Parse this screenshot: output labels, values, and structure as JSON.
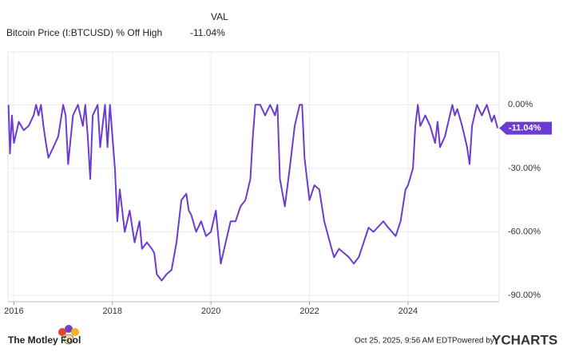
{
  "chart_data": {
    "type": "line",
    "legend_header": "VAL",
    "current": {
      "value": -11.04,
      "label": "-11.04%"
    },
    "x": [
      2015.89,
      2015.92,
      2015.96,
      2016.0,
      2016.1,
      2016.2,
      2016.3,
      2016.4,
      2016.45,
      2016.5,
      2016.55,
      2016.6,
      2016.65,
      2016.7,
      2016.8,
      2016.9,
      2017.0,
      2017.05,
      2017.1,
      2017.2,
      2017.3,
      2017.4,
      2017.45,
      2017.5,
      2017.55,
      2017.6,
      2017.7,
      2017.75,
      2017.8,
      2017.85,
      2017.9,
      2017.95,
      2018.0,
      2018.05,
      2018.1,
      2018.15,
      2018.25,
      2018.35,
      2018.45,
      2018.55,
      2018.6,
      2018.7,
      2018.8,
      2018.85,
      2018.9,
      2019.0,
      2019.1,
      2019.2,
      2019.3,
      2019.4,
      2019.5,
      2019.55,
      2019.6,
      2019.7,
      2019.8,
      2019.9,
      2020.0,
      2020.1,
      2020.2,
      2020.3,
      2020.4,
      2020.5,
      2020.6,
      2020.7,
      2020.8,
      2020.85,
      2020.9,
      2020.95,
      2021.0,
      2021.1,
      2021.2,
      2021.3,
      2021.35,
      2021.4,
      2021.5,
      2021.6,
      2021.7,
      2021.75,
      2021.8,
      2021.85,
      2021.9,
      2022.0,
      2022.1,
      2022.2,
      2022.3,
      2022.45,
      2022.5,
      2022.6,
      2022.7,
      2022.8,
      2022.9,
      2023.0,
      2023.1,
      2023.2,
      2023.3,
      2023.5,
      2023.6,
      2023.75,
      2023.85,
      2023.95,
      2024.0,
      2024.1,
      2024.15,
      2024.2,
      2024.25,
      2024.35,
      2024.45,
      2024.55,
      2024.6,
      2024.65,
      2024.75,
      2024.85,
      2024.9,
      2024.95,
      2025.0,
      2025.1,
      2025.2,
      2025.25,
      2025.3,
      2025.4,
      2025.5,
      2025.6,
      2025.7,
      2025.75,
      2025.82
    ],
    "series": [
      {
        "name": "Bitcoin Price (I:BTCUSD) % Off High",
        "color": "#6c3bd2",
        "values": [
          0,
          -23,
          -5,
          -18,
          -8,
          -12,
          -10,
          -5,
          0,
          -5,
          0,
          -10,
          -18,
          -25,
          -20,
          -15,
          0,
          -5,
          -28,
          -5,
          0,
          -10,
          0,
          -15,
          -35,
          -5,
          0,
          -20,
          -10,
          0,
          -20,
          0,
          -15,
          -30,
          -55,
          -40,
          -60,
          -50,
          -65,
          -55,
          -68,
          -65,
          -68,
          -70,
          -80,
          -83,
          -80,
          -78,
          -65,
          -45,
          -42,
          -50,
          -52,
          -60,
          -55,
          -62,
          -60,
          -50,
          -75,
          -65,
          -55,
          -55,
          -48,
          -45,
          -35,
          -15,
          0,
          0,
          0,
          -5,
          0,
          -5,
          0,
          -35,
          -48,
          -30,
          -10,
          -5,
          0,
          0,
          -25,
          -45,
          -38,
          -40,
          -55,
          -68,
          -72,
          -68,
          -70,
          -72,
          -75,
          -72,
          -65,
          -58,
          -60,
          -55,
          -58,
          -62,
          -55,
          -40,
          -38,
          -30,
          -10,
          0,
          -10,
          -5,
          -10,
          -18,
          -8,
          -20,
          -15,
          -5,
          0,
          -5,
          -2,
          -10,
          -20,
          -28,
          -10,
          0,
          -5,
          0,
          -8,
          -5,
          -11.04
        ]
      }
    ],
    "xlim": [
      2015.88,
      2025.85
    ],
    "ylim": [
      -93,
      25
    ],
    "xticks": [
      2016,
      2018,
      2020,
      2022,
      2024
    ],
    "yticks": [
      {
        "value": 0,
        "label": "0.00%"
      },
      {
        "value": -30,
        "label": "-30.00%"
      },
      {
        "value": -60,
        "label": "-60.00%"
      },
      {
        "value": -90,
        "label": "-90.00%"
      }
    ],
    "grid": true
  },
  "footer": {
    "brand": "The Motley Fool",
    "timestamp": "Oct 25, 2025, 9:56 AM EDT",
    "powered_by": "Powered by",
    "provider": "YCHARTS"
  }
}
